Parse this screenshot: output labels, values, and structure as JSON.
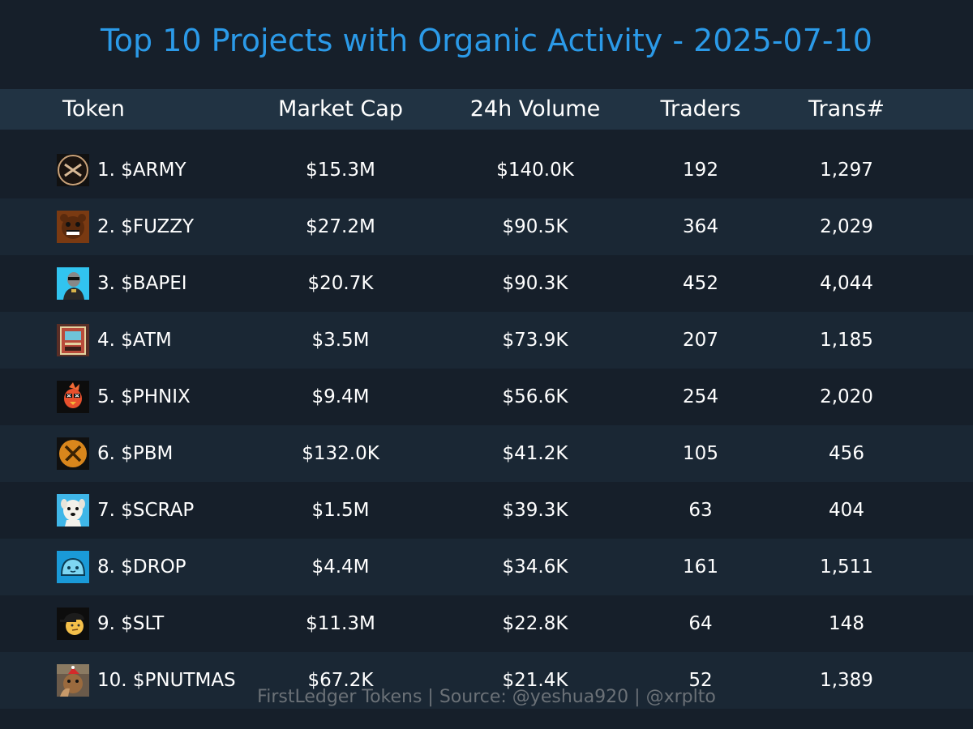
{
  "chart_data": {
    "type": "table",
    "title": "Top 10 Projects with Organic Activity - 2025-07-10",
    "columns": [
      "Token",
      "Market Cap",
      "24h Volume",
      "Traders",
      "Trans#"
    ],
    "rows": [
      {
        "token": "1. $ARMY",
        "market_cap": "$15.3M",
        "volume_24h": "$140.0K",
        "traders": "192",
        "transactions": "1,297",
        "logo": "army-logo-icon"
      },
      {
        "token": "2. $FUZZY",
        "market_cap": "$27.2M",
        "volume_24h": "$90.5K",
        "traders": "364",
        "transactions": "2,029",
        "logo": "fuzzy-bear-logo-icon"
      },
      {
        "token": "3. $BAPEI",
        "market_cap": "$20.7K",
        "volume_24h": "$90.3K",
        "traders": "452",
        "transactions": "4,044",
        "logo": "bapei-ape-logo-icon"
      },
      {
        "token": "4. $ATM",
        "market_cap": "$3.5M",
        "volume_24h": "$73.9K",
        "traders": "207",
        "transactions": "1,185",
        "logo": "atm-machine-logo-icon"
      },
      {
        "token": "5. $PHNIX",
        "market_cap": "$9.4M",
        "volume_24h": "$56.6K",
        "traders": "254",
        "transactions": "2,020",
        "logo": "phoenix-bird-logo-icon"
      },
      {
        "token": "6. $PBM",
        "market_cap": "$132.0K",
        "volume_24h": "$41.2K",
        "traders": "105",
        "transactions": "456",
        "logo": "pbm-x-coin-logo-icon"
      },
      {
        "token": "7. $SCRAP",
        "market_cap": "$1.5M",
        "volume_24h": "$39.3K",
        "traders": "63",
        "transactions": "404",
        "logo": "scrap-dog-logo-icon"
      },
      {
        "token": "8. $DROP",
        "market_cap": "$4.4M",
        "volume_24h": "$34.6K",
        "traders": "161",
        "transactions": "1,511",
        "logo": "drop-blob-logo-icon"
      },
      {
        "token": "9. $SLT",
        "market_cap": "$11.3M",
        "volume_24h": "$22.8K",
        "traders": "64",
        "transactions": "148",
        "logo": "slt-cap-face-logo-icon"
      },
      {
        "token": "10. $PNUTMAS",
        "market_cap": "$67.2K",
        "volume_24h": "$21.4K",
        "traders": "52",
        "transactions": "1,389",
        "logo": "pnutmas-squirrel-logo-icon"
      }
    ],
    "footer": "FirstLedger Tokens | Source: @yeshua920 | @xrplto"
  },
  "colors": {
    "background": "#161f2a",
    "row_alt": "#1a2734",
    "header_bg": "#213343",
    "title": "#2b9ae8",
    "text": "#ffffff",
    "footer": "#6b7177"
  }
}
